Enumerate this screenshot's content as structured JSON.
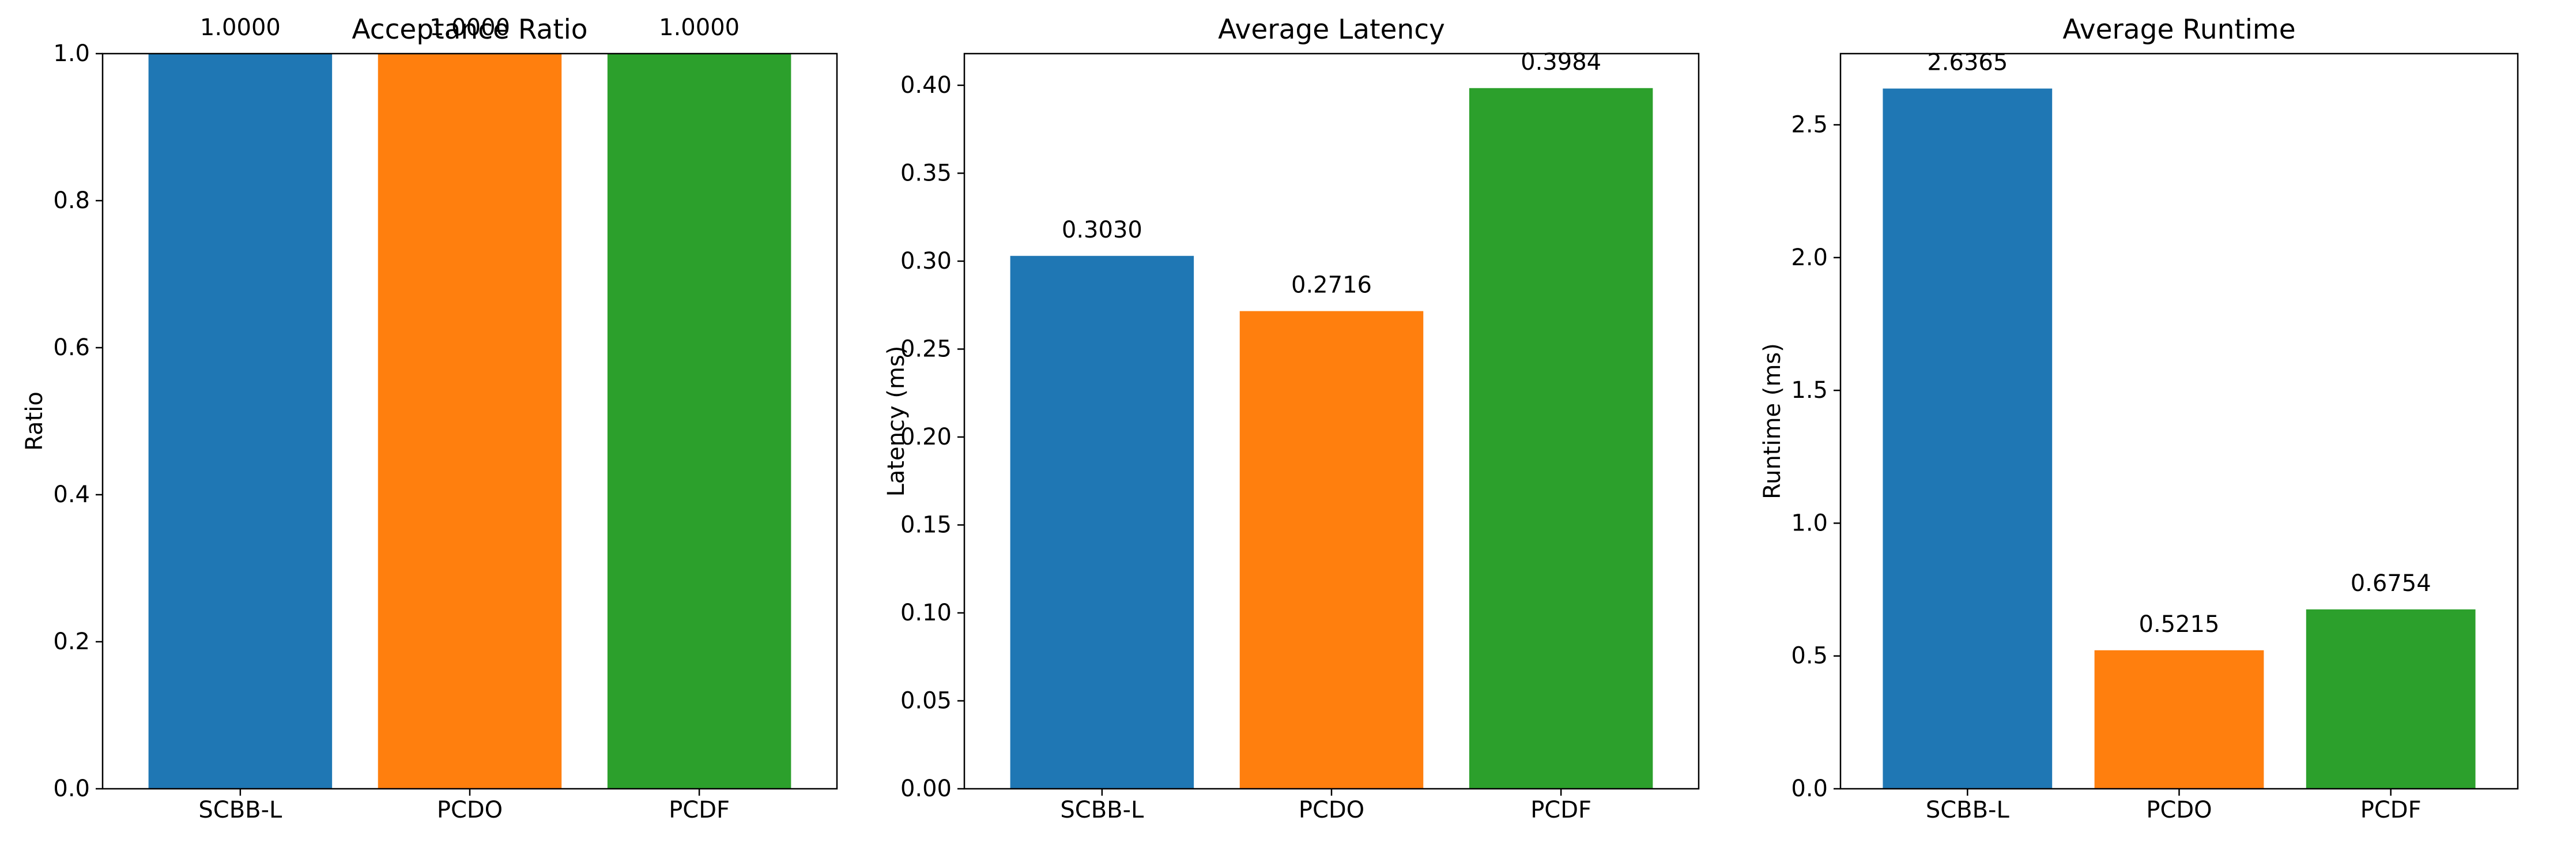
{
  "chart_data": [
    {
      "type": "bar",
      "title": "Acceptance Ratio",
      "xlabel": "",
      "ylabel": "Ratio",
      "categories": [
        "SCBB-L",
        "PCDO",
        "PCDF"
      ],
      "values": [
        1.0,
        1.0,
        1.0
      ],
      "value_labels": [
        "1.0000",
        "1.0000",
        "1.0000"
      ],
      "colors": [
        "#1f77b4",
        "#ff7f0e",
        "#2ca02c"
      ],
      "ylim": [
        0,
        1.0
      ],
      "yticks": [
        0.0,
        0.2,
        0.4,
        0.6,
        0.8,
        1.0
      ],
      "ytick_labels": [
        "0.0",
        "0.2",
        "0.4",
        "0.6",
        "0.8",
        "1.0"
      ],
      "grid": false
    },
    {
      "type": "bar",
      "title": "Average Latency",
      "xlabel": "",
      "ylabel": "Latency (ms)",
      "categories": [
        "SCBB-L",
        "PCDO",
        "PCDF"
      ],
      "values": [
        0.303,
        0.2716,
        0.3984
      ],
      "value_labels": [
        "0.3030",
        "0.2716",
        "0.3984"
      ],
      "colors": [
        "#1f77b4",
        "#ff7f0e",
        "#2ca02c"
      ],
      "ylim": [
        0,
        0.418
      ],
      "yticks": [
        0.0,
        0.05,
        0.1,
        0.15,
        0.2,
        0.25,
        0.3,
        0.35,
        0.4
      ],
      "ytick_labels": [
        "0.00",
        "0.05",
        "0.10",
        "0.15",
        "0.20",
        "0.25",
        "0.30",
        "0.35",
        "0.40"
      ],
      "grid": false
    },
    {
      "type": "bar",
      "title": "Average Runtime",
      "xlabel": "",
      "ylabel": "Runtime (ms)",
      "categories": [
        "SCBB-L",
        "PCDO",
        "PCDF"
      ],
      "values": [
        2.6365,
        0.5215,
        0.6754
      ],
      "value_labels": [
        "2.6365",
        "0.5215",
        "0.6754"
      ],
      "colors": [
        "#1f77b4",
        "#ff7f0e",
        "#2ca02c"
      ],
      "ylim": [
        0,
        2.768
      ],
      "yticks": [
        0.0,
        0.5,
        1.0,
        1.5,
        2.0,
        2.5
      ],
      "ytick_labels": [
        "0.0",
        "0.5",
        "1.0",
        "1.5",
        "2.0",
        "2.5"
      ],
      "grid": false
    }
  ]
}
